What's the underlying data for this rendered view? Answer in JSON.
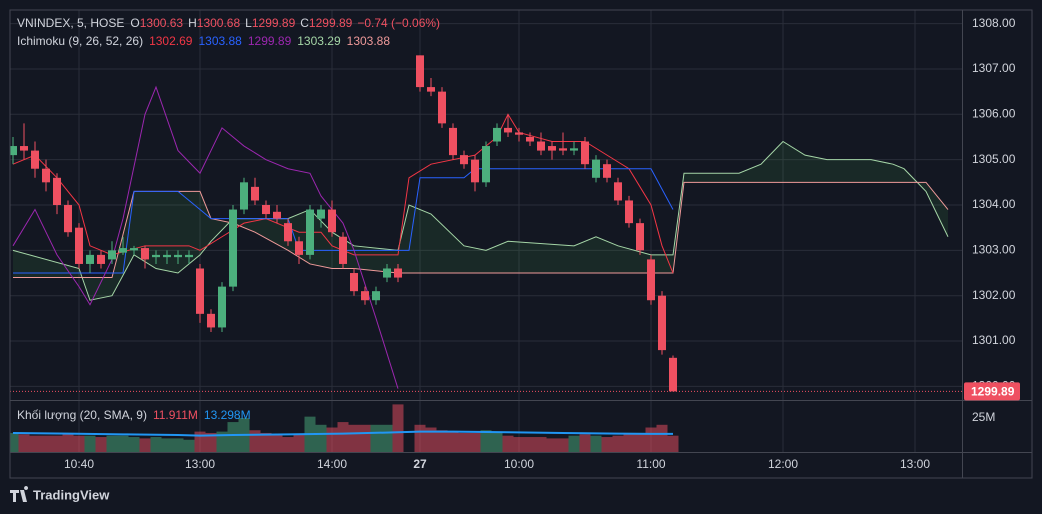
{
  "chart_data": {
    "type": "candlestick",
    "legend": {
      "symbol": "VNINDEX, 5, HOSE",
      "ohlc": [
        {
          "key": "O",
          "value": 1300.63
        },
        {
          "key": "H",
          "value": 1300.68
        },
        {
          "key": "L",
          "value": 1299.89
        },
        {
          "key": "C",
          "value": 1299.89
        }
      ],
      "change": "−0.74 (−0.06%)",
      "ichimoku_label": "Ichimoku (9, 26, 52, 26)",
      "ichimoku_values": [
        {
          "value": 1302.69,
          "color": "#f23645"
        },
        {
          "value": 1303.88,
          "color": "#2962ff"
        },
        {
          "value": 1299.89,
          "color": "#9c27b0"
        },
        {
          "value": 1303.29,
          "color": "#a5d6a7"
        },
        {
          "value": 1303.88,
          "color": "#ef9a9a"
        }
      ],
      "volume_label": "Khối lượng (20, SMA, 9)",
      "volume_values": [
        {
          "label": "11.911M",
          "color": "#ef5061"
        },
        {
          "label": "13.298M",
          "color": "#2196f3"
        }
      ]
    },
    "up_color": "#4caf7d",
    "down_color": "#ef5061",
    "last_price": 1299.89,
    "ylim": [
      1299.7,
      1308.3
    ],
    "yticks": [
      {
        "value": 1300,
        "label": "1300.00"
      },
      {
        "value": 1301,
        "label": "1301.00"
      },
      {
        "value": 1302,
        "label": "1302.00"
      },
      {
        "value": 1303,
        "label": "1303.00"
      },
      {
        "value": 1304,
        "label": "1304.00"
      },
      {
        "value": 1305,
        "label": "1305.00"
      },
      {
        "value": 1306,
        "label": "1306.00"
      },
      {
        "value": 1307,
        "label": "1307.00"
      },
      {
        "value": 1308,
        "label": "1308.00"
      }
    ],
    "xticks": [
      {
        "value": 6,
        "label": "10:40"
      },
      {
        "value": 17,
        "label": "13:00"
      },
      {
        "value": 29,
        "label": "14:00"
      },
      {
        "value": 37,
        "label": "27"
      },
      {
        "value": 46,
        "label": "10:00"
      },
      {
        "value": 58,
        "label": "11:00"
      },
      {
        "value": 70,
        "label": "12:00"
      },
      {
        "value": 82,
        "label": "13:00"
      }
    ],
    "volume_ticks": [
      {
        "value": 25,
        "label": "25M"
      }
    ],
    "candles": [
      {
        "x": 0,
        "open": 1305.1,
        "high": 1305.5,
        "low": 1304.9,
        "close": 1305.3,
        "volume": 14
      },
      {
        "x": 1,
        "open": 1305.3,
        "high": 1305.8,
        "low": 1305.0,
        "close": 1305.2,
        "volume": 13
      },
      {
        "x": 2,
        "open": 1305.2,
        "high": 1305.4,
        "low": 1304.6,
        "close": 1304.8,
        "volume": 12
      },
      {
        "x": 3,
        "open": 1304.8,
        "high": 1305.0,
        "low": 1304.3,
        "close": 1304.5,
        "volume": 12
      },
      {
        "x": 4,
        "open": 1304.6,
        "high": 1304.7,
        "low": 1303.8,
        "close": 1304.0,
        "volume": 12
      },
      {
        "x": 5,
        "open": 1304.0,
        "high": 1304.1,
        "low": 1303.3,
        "close": 1303.4,
        "volume": 13
      },
      {
        "x": 6,
        "open": 1303.5,
        "high": 1303.6,
        "low": 1302.6,
        "close": 1302.7,
        "volume": 12
      },
      {
        "x": 7,
        "open": 1302.7,
        "high": 1303.0,
        "low": 1302.5,
        "close": 1302.9,
        "volume": 12
      },
      {
        "x": 8,
        "open": 1302.9,
        "high": 1303.0,
        "low": 1302.6,
        "close": 1302.7,
        "volume": 11
      },
      {
        "x": 9,
        "open": 1302.8,
        "high": 1303.2,
        "low": 1302.7,
        "close": 1303.0,
        "volume": 12
      },
      {
        "x": 10,
        "open": 1302.95,
        "high": 1303.3,
        "low": 1302.9,
        "close": 1303.05,
        "volume": 12
      },
      {
        "x": 11,
        "open": 1303.0,
        "high": 1303.1,
        "low": 1302.9,
        "close": 1303.05,
        "volume": 11
      },
      {
        "x": 12,
        "open": 1303.05,
        "high": 1303.1,
        "low": 1302.6,
        "close": 1302.8,
        "volume": 10
      },
      {
        "x": 13,
        "open": 1302.85,
        "high": 1303.0,
        "low": 1302.7,
        "close": 1302.9,
        "volume": 11
      },
      {
        "x": 14,
        "open": 1302.85,
        "high": 1303.0,
        "low": 1302.7,
        "close": 1302.9,
        "volume": 10
      },
      {
        "x": 15,
        "open": 1302.85,
        "high": 1303.0,
        "low": 1302.7,
        "close": 1302.9,
        "volume": 10
      },
      {
        "x": 16,
        "open": 1302.85,
        "high": 1303.0,
        "low": 1302.7,
        "close": 1302.9,
        "volume": 9
      },
      {
        "x": 17,
        "open": 1302.6,
        "high": 1302.7,
        "low": 1301.4,
        "close": 1301.6,
        "volume": 15
      },
      {
        "x": 18,
        "open": 1301.6,
        "high": 1301.7,
        "low": 1301.2,
        "close": 1301.3,
        "volume": 14
      },
      {
        "x": 19,
        "open": 1301.3,
        "high": 1302.3,
        "low": 1301.2,
        "close": 1302.2,
        "volume": 15
      },
      {
        "x": 20,
        "open": 1302.2,
        "high": 1304.0,
        "low": 1302.1,
        "close": 1303.9,
        "volume": 22
      },
      {
        "x": 21,
        "open": 1303.9,
        "high": 1304.6,
        "low": 1303.8,
        "close": 1304.5,
        "volume": 25
      },
      {
        "x": 22,
        "open": 1304.4,
        "high": 1304.6,
        "low": 1304.0,
        "close": 1304.1,
        "volume": 16
      },
      {
        "x": 23,
        "open": 1304.0,
        "high": 1304.1,
        "low": 1303.7,
        "close": 1303.8,
        "volume": 14
      },
      {
        "x": 24,
        "open": 1303.85,
        "high": 1304.0,
        "low": 1303.6,
        "close": 1303.7,
        "volume": 13
      },
      {
        "x": 25,
        "open": 1303.6,
        "high": 1303.7,
        "low": 1303.1,
        "close": 1303.2,
        "volume": 11
      },
      {
        "x": 26,
        "open": 1303.2,
        "high": 1303.3,
        "low": 1302.7,
        "close": 1302.9,
        "volume": 13
      },
      {
        "x": 27,
        "open": 1302.9,
        "high": 1304.0,
        "low": 1302.8,
        "close": 1303.9,
        "volume": 26
      },
      {
        "x": 28,
        "open": 1303.7,
        "high": 1304.0,
        "low": 1303.5,
        "close": 1303.9,
        "volume": 20
      },
      {
        "x": 29,
        "open": 1303.9,
        "high": 1304.1,
        "low": 1303.3,
        "close": 1303.4,
        "volume": 18
      },
      {
        "x": 30,
        "open": 1303.3,
        "high": 1303.4,
        "low": 1302.6,
        "close": 1302.7,
        "volume": 22
      },
      {
        "x": 31,
        "open": 1302.5,
        "high": 1302.6,
        "low": 1302.0,
        "close": 1302.1,
        "volume": 20
      },
      {
        "x": 32,
        "open": 1302.1,
        "high": 1302.2,
        "low": 1301.8,
        "close": 1301.9,
        "volume": 20
      },
      {
        "x": 33,
        "open": 1301.9,
        "high": 1302.2,
        "low": 1301.8,
        "close": 1302.1,
        "volume": 20
      },
      {
        "x": 34,
        "open": 1302.4,
        "high": 1302.7,
        "low": 1302.3,
        "close": 1302.6,
        "volume": 20
      },
      {
        "x": 35,
        "open": 1302.6,
        "high": 1302.7,
        "low": 1302.3,
        "close": 1302.4,
        "volume": 35
      },
      {
        "x": 37,
        "open": 1307.3,
        "high": 1307.3,
        "low": 1306.5,
        "close": 1306.6,
        "volume": 20
      },
      {
        "x": 38,
        "open": 1306.6,
        "high": 1306.8,
        "low": 1306.4,
        "close": 1306.5,
        "volume": 18
      },
      {
        "x": 39,
        "open": 1306.5,
        "high": 1306.6,
        "low": 1305.7,
        "close": 1305.8,
        "volume": 16
      },
      {
        "x": 40,
        "open": 1305.7,
        "high": 1305.8,
        "low": 1305.0,
        "close": 1305.1,
        "volume": 15
      },
      {
        "x": 41,
        "open": 1305.1,
        "high": 1305.2,
        "low": 1304.8,
        "close": 1304.9,
        "volume": 14
      },
      {
        "x": 42,
        "open": 1305.0,
        "high": 1305.1,
        "low": 1304.3,
        "close": 1304.5,
        "volume": 14
      },
      {
        "x": 43,
        "open": 1304.5,
        "high": 1305.4,
        "low": 1304.4,
        "close": 1305.3,
        "volume": 16
      },
      {
        "x": 44,
        "open": 1305.4,
        "high": 1305.8,
        "low": 1305.3,
        "close": 1305.7,
        "volume": 14
      },
      {
        "x": 45,
        "open": 1305.7,
        "high": 1306.0,
        "low": 1305.5,
        "close": 1305.6,
        "volume": 12
      },
      {
        "x": 46,
        "open": 1305.6,
        "high": 1305.7,
        "low": 1305.4,
        "close": 1305.55,
        "volume": 11
      },
      {
        "x": 47,
        "open": 1305.5,
        "high": 1305.6,
        "low": 1305.3,
        "close": 1305.4,
        "volume": 11
      },
      {
        "x": 48,
        "open": 1305.4,
        "high": 1305.6,
        "low": 1305.1,
        "close": 1305.2,
        "volume": 11
      },
      {
        "x": 49,
        "open": 1305.3,
        "high": 1305.4,
        "low": 1305.0,
        "close": 1305.2,
        "volume": 10
      },
      {
        "x": 50,
        "open": 1305.25,
        "high": 1305.6,
        "low": 1305.1,
        "close": 1305.2,
        "volume": 10
      },
      {
        "x": 51,
        "open": 1305.2,
        "high": 1305.4,
        "low": 1305.1,
        "close": 1305.25,
        "volume": 12
      },
      {
        "x": 52,
        "open": 1305.4,
        "high": 1305.5,
        "low": 1304.8,
        "close": 1304.9,
        "volume": 13
      },
      {
        "x": 53,
        "open": 1304.6,
        "high": 1305.1,
        "low": 1304.5,
        "close": 1305.0,
        "volume": 12
      },
      {
        "x": 54,
        "open": 1304.9,
        "high": 1305.0,
        "low": 1304.5,
        "close": 1304.6,
        "volume": 11
      },
      {
        "x": 55,
        "open": 1304.5,
        "high": 1304.6,
        "low": 1304.0,
        "close": 1304.1,
        "volume": 12
      },
      {
        "x": 56,
        "open": 1304.1,
        "high": 1304.2,
        "low": 1303.5,
        "close": 1303.6,
        "volume": 14
      },
      {
        "x": 57,
        "open": 1303.6,
        "high": 1303.7,
        "low": 1302.9,
        "close": 1303.0,
        "volume": 14
      },
      {
        "x": 58,
        "open": 1302.8,
        "high": 1302.9,
        "low": 1301.8,
        "close": 1301.9,
        "volume": 18
      },
      {
        "x": 59,
        "open": 1302.0,
        "high": 1302.1,
        "low": 1300.7,
        "close": 1300.8,
        "volume": 20
      },
      {
        "x": 60,
        "open": 1300.63,
        "high": 1300.68,
        "low": 1299.89,
        "close": 1299.89,
        "volume": 12
      }
    ],
    "lines": [
      {
        "name": "tenkan",
        "color": "#f23645",
        "x": [
          0,
          2,
          4,
          6,
          7,
          9,
          12,
          16,
          17,
          19,
          21,
          23,
          26,
          28,
          29,
          31,
          35,
          36,
          38,
          42,
          44,
          45,
          46,
          49,
          52,
          54,
          56,
          58,
          59,
          60
        ],
        "values": [
          1304.9,
          1305.1,
          1304.6,
          1304.0,
          1303.1,
          1302.9,
          1303.1,
          1303.1,
          1303.0,
          1303.3,
          1303.6,
          1303.7,
          1303.4,
          1303.4,
          1303.1,
          1302.9,
          1302.9,
          1304.6,
          1304.9,
          1305.1,
          1305.5,
          1306.0,
          1305.6,
          1305.4,
          1305.4,
          1305.1,
          1304.8,
          1304.0,
          1303.1,
          1302.5
        ]
      },
      {
        "name": "kijun",
        "color": "#2962ff",
        "x": [
          0,
          10,
          11,
          15,
          17,
          18,
          25,
          26,
          35,
          36,
          37,
          41,
          42,
          58,
          60
        ],
        "values": [
          1302.5,
          1302.5,
          1304.3,
          1304.3,
          1303.9,
          1303.7,
          1303.7,
          1303.0,
          1303.0,
          1303.0,
          1304.6,
          1304.6,
          1304.8,
          1304.8,
          1303.9
        ]
      },
      {
        "name": "chikou",
        "color": "#9c27b0",
        "x": [
          0,
          2,
          3,
          4,
          6,
          7,
          9,
          10,
          12,
          13,
          15,
          17,
          18,
          19,
          21,
          23,
          25,
          27,
          28,
          30,
          31,
          33,
          35
        ],
        "values": [
          1303.1,
          1303.9,
          1303.4,
          1302.9,
          1302.2,
          1301.8,
          1302.8,
          1303.7,
          1306.0,
          1306.6,
          1305.2,
          1304.7,
          1305.2,
          1305.7,
          1305.3,
          1305.0,
          1304.8,
          1304.7,
          1304.2,
          1303.6,
          1303.0,
          1301.5,
          1299.95
        ]
      }
    ],
    "cloud": {
      "x": [
        0,
        6,
        7,
        9,
        11,
        13,
        15,
        17,
        18,
        20,
        22,
        25,
        27,
        29,
        31,
        35,
        36,
        38,
        41,
        43,
        45,
        51,
        53,
        55,
        58,
        60,
        61,
        66,
        68,
        70,
        72,
        74,
        78,
        80,
        81,
        83,
        85
      ],
      "span_a": {
        "color": "#a5d6a7",
        "values": [
          1303.0,
          1302.6,
          1301.9,
          1302.0,
          1302.9,
          1302.6,
          1302.5,
          1302.9,
          1303.2,
          1303.7,
          1303.7,
          1303.7,
          1303.9,
          1303.4,
          1303.1,
          1303.0,
          1304.0,
          1303.8,
          1303.1,
          1303.0,
          1303.2,
          1303.1,
          1303.3,
          1303.1,
          1302.9,
          1302.9,
          1304.7,
          1304.7,
          1304.9,
          1305.4,
          1305.1,
          1305.0,
          1305.0,
          1304.9,
          1304.8,
          1304.3,
          1303.3
        ]
      },
      "span_b": {
        "color": "#ef9a9a",
        "values": [
          1302.4,
          1302.4,
          1302.4,
          1302.4,
          1304.3,
          1304.3,
          1304.3,
          1304.3,
          1303.7,
          1303.6,
          1303.4,
          1303.0,
          1302.7,
          1302.6,
          1302.6,
          1302.5,
          1302.5,
          1302.5,
          1302.5,
          1302.5,
          1302.5,
          1302.5,
          1302.5,
          1302.5,
          1302.5,
          1302.5,
          1304.5,
          1304.5,
          1304.5,
          1304.5,
          1304.5,
          1304.5,
          1304.5,
          1304.5,
          1304.5,
          1304.5,
          1303.9
        ]
      }
    },
    "volume_sma": {
      "color": "#2196f3",
      "x": [
        0,
        5,
        10,
        15,
        17,
        20,
        25,
        30,
        35,
        37,
        40,
        45,
        50,
        55,
        58,
        60
      ],
      "values": [
        14,
        13.5,
        13,
        12.5,
        12,
        12.5,
        13,
        13.5,
        14.5,
        15,
        15,
        14.5,
        14,
        13.5,
        13.3,
        13.3
      ]
    },
    "brand": "TradingView"
  }
}
